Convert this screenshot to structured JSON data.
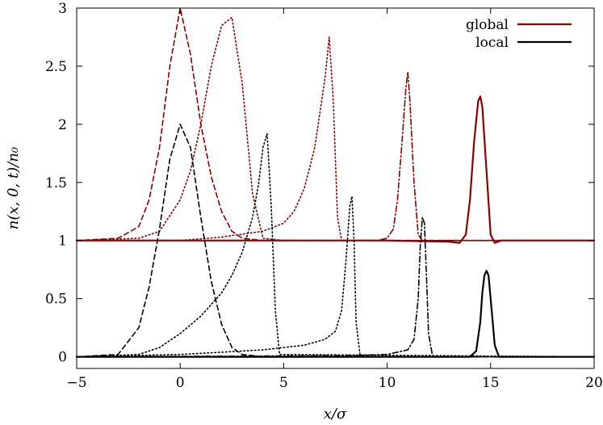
{
  "chart_data": {
    "type": "line",
    "title": "",
    "xlabel": "x/σ",
    "ylabel": "n(x, 0, t)/n₀",
    "xlim": [
      -5,
      20
    ],
    "ylim": [
      -0.1,
      3.0
    ],
    "xticks": [
      -5,
      0,
      5,
      10,
      15,
      20
    ],
    "yticks": [
      0,
      0.5,
      1,
      1.5,
      2,
      2.5,
      3
    ],
    "xtick_labels": [
      "−5",
      "0",
      "5",
      "10",
      "15",
      "20"
    ],
    "ytick_labels": [
      "0",
      "0.5",
      "1",
      "1.5",
      "2",
      "2.5",
      "3"
    ],
    "grid": false,
    "legend_position": "top-right",
    "legend": [
      {
        "label": "global",
        "color": "#8b0000",
        "dash": "solid"
      },
      {
        "label": "local",
        "color": "#000000",
        "dash": "solid"
      }
    ],
    "series": [
      {
        "group": "global",
        "color": "#8b0000",
        "dash": "dashed",
        "x": [
          -5,
          -3,
          -2,
          -1.5,
          -1,
          -0.5,
          0,
          0.5,
          1,
          1.5,
          2,
          2.5,
          3,
          4,
          5,
          20
        ],
        "y": [
          1.0,
          1.02,
          1.12,
          1.35,
          1.8,
          2.5,
          3.0,
          2.6,
          2.0,
          1.55,
          1.25,
          1.08,
          1.02,
          1.0,
          1.0,
          1.0
        ]
      },
      {
        "group": "global",
        "color": "#8b0000",
        "dash": "dotted",
        "x": [
          -5,
          -2,
          -1,
          0,
          0.5,
          1,
          1.5,
          2,
          2.5,
          3,
          3.5,
          4,
          5,
          20
        ],
        "y": [
          1.0,
          1.02,
          1.08,
          1.35,
          1.6,
          2.0,
          2.5,
          2.85,
          2.92,
          2.35,
          1.4,
          1.02,
          1.0,
          1.0
        ]
      },
      {
        "group": "global",
        "color": "#8b0000",
        "dash": "dotted",
        "x": [
          -5,
          0,
          2,
          4,
          5,
          5.5,
          6,
          6.5,
          7,
          7.2,
          7.4,
          7.6,
          7.8,
          8,
          20
        ],
        "y": [
          1.0,
          1.0,
          1.03,
          1.08,
          1.15,
          1.25,
          1.45,
          1.8,
          2.4,
          2.75,
          2.2,
          1.2,
          1.0,
          1.0,
          1.0
        ]
      },
      {
        "group": "global",
        "color": "#8b0000",
        "dash": "dashdot",
        "x": [
          -5,
          8,
          9.5,
          10,
          10.3,
          10.5,
          10.7,
          10.9,
          11.0,
          11.1,
          11.3,
          11.5,
          11.7,
          20
        ],
        "y": [
          1.0,
          1.0,
          1.0,
          1.02,
          1.1,
          1.35,
          1.8,
          2.3,
          2.45,
          2.2,
          1.5,
          1.05,
          1.0,
          1.0
        ]
      },
      {
        "group": "global",
        "color": "#8b0000",
        "dash": "solid",
        "x": [
          -5,
          10,
          13,
          13.5,
          13.8,
          14.0,
          14.2,
          14.4,
          14.5,
          14.6,
          14.8,
          15.0,
          15.2,
          15.5,
          20
        ],
        "y": [
          1.0,
          1.0,
          0.99,
          0.98,
          1.05,
          1.35,
          1.85,
          2.2,
          2.24,
          2.15,
          1.6,
          1.05,
          0.98,
          1.0,
          1.0
        ]
      },
      {
        "group": "local",
        "color": "#000000",
        "dash": "dashed",
        "x": [
          -5,
          -3,
          -2,
          -1.5,
          -1,
          -0.5,
          0,
          0.5,
          1,
          1.5,
          2,
          2.5,
          3,
          4,
          20
        ],
        "y": [
          0.0,
          0.02,
          0.25,
          0.6,
          1.1,
          1.7,
          2.0,
          1.8,
          1.2,
          0.65,
          0.28,
          0.08,
          0.02,
          0.0,
          0.0
        ]
      },
      {
        "group": "local",
        "color": "#000000",
        "dash": "dotted",
        "x": [
          -5,
          -2,
          -1,
          0,
          1,
          2,
          2.5,
          3,
          3.5,
          3.8,
          4.0,
          4.2,
          4.4,
          4.6,
          4.8,
          20
        ],
        "y": [
          0.0,
          0.02,
          0.08,
          0.2,
          0.35,
          0.55,
          0.7,
          0.9,
          1.2,
          1.5,
          1.8,
          1.92,
          1.3,
          0.4,
          0.02,
          0.0
        ]
      },
      {
        "group": "local",
        "color": "#000000",
        "dash": "dotted",
        "x": [
          -5,
          0,
          2,
          4,
          6,
          7,
          7.5,
          7.8,
          8.0,
          8.2,
          8.3,
          8.4,
          8.5,
          8.7,
          20
        ],
        "y": [
          0.0,
          0.02,
          0.04,
          0.06,
          0.1,
          0.15,
          0.22,
          0.4,
          0.8,
          1.3,
          1.38,
          1.0,
          0.3,
          0.0,
          0.0
        ]
      },
      {
        "group": "local",
        "color": "#000000",
        "dash": "dashdot",
        "x": [
          -5,
          8,
          10,
          11,
          11.3,
          11.5,
          11.6,
          11.7,
          11.8,
          11.9,
          12.0,
          12.2,
          20
        ],
        "y": [
          0.0,
          0.01,
          0.02,
          0.06,
          0.15,
          0.5,
          0.95,
          1.2,
          1.15,
          0.7,
          0.2,
          0.0,
          0.0
        ]
      },
      {
        "group": "local",
        "color": "#000000",
        "dash": "solid",
        "x": [
          -5,
          13,
          14.0,
          14.3,
          14.5,
          14.6,
          14.7,
          14.8,
          14.9,
          15.0,
          15.2,
          15.4,
          20
        ],
        "y": [
          0.0,
          0.0,
          0.0,
          0.05,
          0.3,
          0.55,
          0.7,
          0.74,
          0.7,
          0.5,
          0.1,
          0.0,
          0.0
        ]
      }
    ]
  }
}
